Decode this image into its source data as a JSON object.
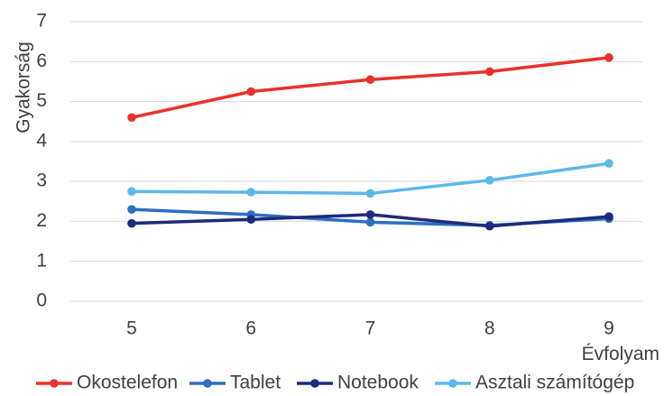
{
  "chart_data": {
    "type": "line",
    "xlabel": "Évfolyam",
    "ylabel": "Gyakorság",
    "categories": [
      "5",
      "6",
      "7",
      "8",
      "9"
    ],
    "ylim": [
      0,
      7
    ],
    "yticks": [
      "0",
      "1",
      "2",
      "3",
      "4",
      "5",
      "6",
      "7"
    ],
    "grid": true,
    "legend_position": "bottom",
    "series": [
      {
        "name": "Okostelefon",
        "color": "#e8322a",
        "values": [
          4.6,
          5.25,
          5.55,
          5.75,
          6.1
        ]
      },
      {
        "name": "Tablet",
        "color": "#2a6fc1",
        "values": [
          2.3,
          2.17,
          1.98,
          1.9,
          2.07
        ]
      },
      {
        "name": "Notebook",
        "color": "#1f2a7a",
        "values": [
          1.95,
          2.05,
          2.17,
          1.88,
          2.12
        ]
      },
      {
        "name": "Asztali számítógép",
        "color": "#5db8ea",
        "values": [
          2.75,
          2.73,
          2.7,
          3.03,
          3.45
        ]
      }
    ]
  }
}
